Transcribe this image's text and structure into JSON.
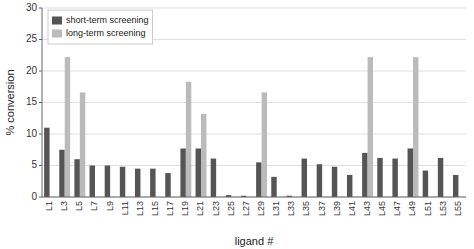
{
  "chart_data": {
    "type": "bar",
    "categories": [
      "L1",
      "L3",
      "L5",
      "L7",
      "L9",
      "L11",
      "L13",
      "L15",
      "L17",
      "L19",
      "L21",
      "L23",
      "L25",
      "L27",
      "L29",
      "L31",
      "L33",
      "L35",
      "L37",
      "L39",
      "L41",
      "L43",
      "L45",
      "L47",
      "L49",
      "L51",
      "L53",
      "L55"
    ],
    "series": [
      {
        "name": "short-term screening",
        "color": "#555555",
        "values": [
          11.0,
          7.5,
          6.0,
          5.0,
          5.0,
          4.8,
          4.5,
          4.5,
          3.8,
          7.7,
          7.7,
          6.1,
          0.3,
          0.2,
          5.5,
          3.2,
          0.2,
          6.1,
          5.2,
          4.8,
          3.5,
          7.0,
          6.2,
          6.1,
          7.7,
          4.2,
          6.2,
          3.5
        ]
      },
      {
        "name": "long-term screening",
        "color": "#bbbbbb",
        "values": [
          0.0,
          22.2,
          16.6,
          0.0,
          0.0,
          0.0,
          0.0,
          0.0,
          0.0,
          18.3,
          13.2,
          0.0,
          0.0,
          0.0,
          16.6,
          0.0,
          0.0,
          0.0,
          0.0,
          0.0,
          0.0,
          22.2,
          0.0,
          0.0,
          22.2,
          0.0,
          0.0,
          0.0
        ]
      }
    ],
    "xlabel": "ligand #",
    "ylabel": "% conversion",
    "ylim": [
      0,
      30
    ],
    "yticks": [
      0,
      5,
      10,
      15,
      20,
      25,
      30
    ],
    "grid": true,
    "legend": "upper left"
  }
}
